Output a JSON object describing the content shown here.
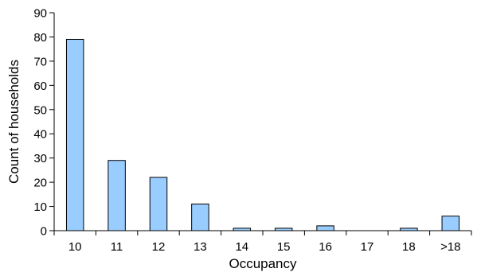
{
  "chart_data": {
    "type": "bar",
    "title": "",
    "xlabel": "Occupancy",
    "ylabel": "Count of households",
    "categories": [
      "10",
      "11",
      "12",
      "13",
      "14",
      "15",
      "16",
      "17",
      "18",
      ">18"
    ],
    "values": [
      79,
      29,
      22,
      11,
      1,
      1,
      2,
      0,
      1,
      6
    ],
    "ylim": [
      0,
      90
    ],
    "yticks": [
      "0",
      "10",
      "20",
      "30",
      "40",
      "50",
      "60",
      "70",
      "80",
      "90"
    ],
    "grid": false,
    "legend": "none",
    "colors": {
      "bar_fill": "#99ccff",
      "bar_stroke": "#000000",
      "axis": "#000000"
    }
  }
}
